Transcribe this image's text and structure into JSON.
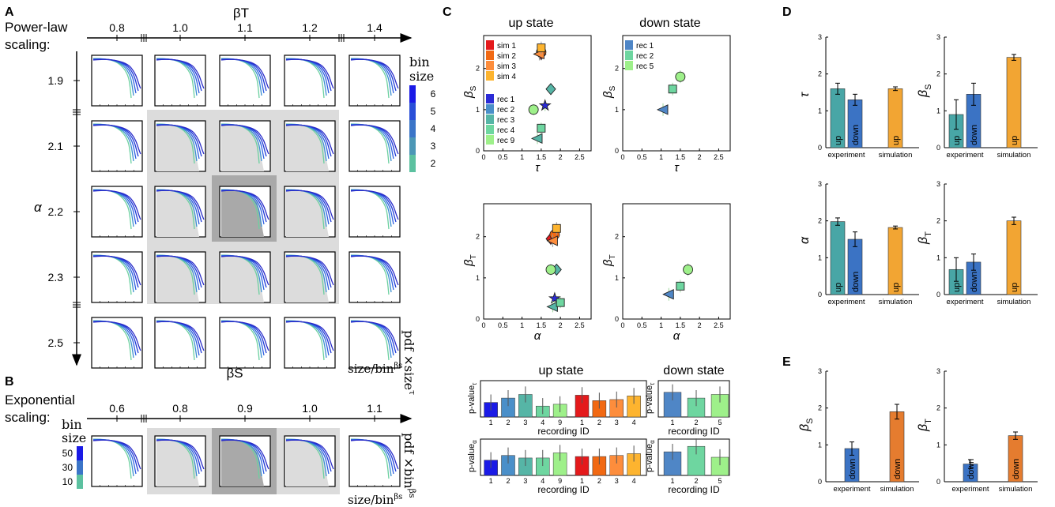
{
  "panels": {
    "A": "A",
    "B": "B",
    "C": "C",
    "D": "D",
    "E": "E"
  },
  "colors": {
    "sim": [
      "#e41a1c",
      "#f16913",
      "#fd8d3c",
      "#fdb42f"
    ],
    "rec": [
      "#2b2bd6",
      "#4a8fc9",
      "#56b5a6",
      "#6ed6a0",
      "#9ef08a"
    ],
    "teal": "#48a6a6",
    "blue": "#3b73c4",
    "orange": "#f2a533",
    "dorange": "#e57c2f",
    "grey": "#d9d9d9",
    "dgrey": "#a8a8a8"
  },
  "panelA": {
    "title_lines": [
      "Power-law",
      "scaling:"
    ],
    "top_axis_label": "βT",
    "top_ticks": [
      "0.8",
      "1.0",
      "1.1",
      "1.2",
      "1.4"
    ],
    "left_axis_label": "α",
    "left_ticks": [
      "1.9",
      "2.1",
      "2.2",
      "2.3",
      "2.5"
    ],
    "bottom_label": "βS",
    "colorbar_title": [
      "bin",
      "size"
    ],
    "colorbar_ticks": [
      "6",
      "5",
      "4",
      "3",
      "2"
    ],
    "ylabel": "pdf ×size",
    "ylabel_exp": "τ",
    "xlabel": "size/bin",
    "xlabel_exp": "βs"
  },
  "panelB": {
    "title_lines": [
      "Exponential",
      "scaling:"
    ],
    "top_ticks": [
      "0.6",
      "0.8",
      "0.9",
      "1.0",
      "1.1"
    ],
    "colorbar_title": [
      "bin",
      "size"
    ],
    "colorbar_ticks": [
      "50",
      "30",
      "10"
    ],
    "ylabel": "pdf ×bin",
    "ylabel_exp": "βs",
    "xlabel": "size/bin",
    "xlabel_exp": "βs"
  },
  "panelC": {
    "up_title": "up state",
    "down_title": "down state",
    "sim_legend": [
      "sim 1",
      "sim 2",
      "sim 3",
      "sim 4"
    ],
    "rec_legend_up": [
      "rec 1",
      "rec 2",
      "rec 3",
      "rec 4",
      "rec 9"
    ],
    "rec_legend_down": [
      "rec 1",
      "rec 2",
      "rec 5"
    ],
    "x_tau": "τ",
    "x_alpha": "α",
    "y_betaS": "β",
    "y_betaS_sub": "S",
    "y_betaT": "β",
    "y_betaT_sub": "T",
    "xticks": [
      "0",
      "0.5",
      "1",
      "1.5",
      "2",
      "2.5"
    ],
    "yticks": [
      "0",
      "1",
      "2"
    ],
    "pval_tau": "p-value",
    "pval_tau_sub": "τ",
    "pval_alpha": "p-value",
    "pval_alpha_sub": "α",
    "recording_id": "recording ID",
    "up_ids": [
      "1",
      "2",
      "3",
      "4",
      "9",
      "1",
      "2",
      "3",
      "4"
    ],
    "down_ids": [
      "1",
      "2",
      "5"
    ]
  },
  "panelDE": {
    "cat_experiment": "experiment",
    "cat_simulation": "simulation",
    "tag_up": "up",
    "tag_down": "down",
    "label_tau": "τ",
    "label_alpha": "α",
    "label_beta": "β",
    "sub_S": "S",
    "sub_T": "T"
  },
  "chart_data": [
    {
      "type": "scatter",
      "title": "up state",
      "xlabel": "τ",
      "ylabel": "βS",
      "xlim": [
        0,
        2.8
      ],
      "ylim": [
        0,
        2.8
      ],
      "points": [
        {
          "name": "sim 1",
          "x": 1.5,
          "y": 2.35
        },
        {
          "name": "sim 2",
          "x": 1.5,
          "y": 2.4
        },
        {
          "name": "sim 3",
          "x": 1.45,
          "y": 2.35
        },
        {
          "name": "sim 4",
          "x": 1.5,
          "y": 2.5
        },
        {
          "name": "rec 1",
          "x": 1.6,
          "y": 1.1
        },
        {
          "name": "rec 2",
          "x": 1.75,
          "y": 1.5
        },
        {
          "name": "rec 3",
          "x": 1.4,
          "y": 0.3
        },
        {
          "name": "rec 4",
          "x": 1.5,
          "y": 0.55
        },
        {
          "name": "rec 9",
          "x": 1.3,
          "y": 1.0
        }
      ]
    },
    {
      "type": "scatter",
      "title": "down state",
      "xlabel": "τ",
      "ylabel": "βS",
      "xlim": [
        0,
        2.8
      ],
      "ylim": [
        0,
        2.8
      ],
      "points": [
        {
          "name": "rec 1",
          "x": 1.05,
          "y": 1.0
        },
        {
          "name": "rec 2",
          "x": 1.3,
          "y": 1.5
        },
        {
          "name": "rec 5",
          "x": 1.5,
          "y": 1.8
        }
      ]
    },
    {
      "type": "scatter",
      "title": "up state",
      "xlabel": "α",
      "ylabel": "βT",
      "xlim": [
        0,
        2.8
      ],
      "ylim": [
        0,
        2.8
      ],
      "points": [
        {
          "name": "sim 1",
          "x": 1.75,
          "y": 1.95
        },
        {
          "name": "sim 2",
          "x": 1.85,
          "y": 2.05
        },
        {
          "name": "sim 3",
          "x": 1.8,
          "y": 1.9
        },
        {
          "name": "sim 4",
          "x": 1.9,
          "y": 2.2
        },
        {
          "name": "rec 1",
          "x": 1.85,
          "y": 0.5
        },
        {
          "name": "rec 2",
          "x": 1.9,
          "y": 1.2
        },
        {
          "name": "rec 3",
          "x": 1.8,
          "y": 0.3
        },
        {
          "name": "rec 4",
          "x": 2.0,
          "y": 0.4
        },
        {
          "name": "rec 9",
          "x": 1.75,
          "y": 1.2
        }
      ]
    },
    {
      "type": "scatter",
      "title": "down state",
      "xlabel": "α",
      "ylabel": "βT",
      "xlim": [
        0,
        2.8
      ],
      "ylim": [
        0,
        2.8
      ],
      "points": [
        {
          "name": "rec 1",
          "x": 1.2,
          "y": 0.6
        },
        {
          "name": "rec 2",
          "x": 1.5,
          "y": 0.8
        },
        {
          "name": "rec 5",
          "x": 1.7,
          "y": 1.2
        }
      ]
    },
    {
      "type": "bar",
      "title": "up state p-value τ",
      "xlabel": "recording ID",
      "ylabel": "p-value τ",
      "ylim": [
        0,
        1
      ],
      "categories": [
        "1",
        "2",
        "3",
        "4",
        "9",
        "1",
        "2",
        "3",
        "4"
      ],
      "values": [
        0.4,
        0.52,
        0.62,
        0.3,
        0.35,
        0.6,
        0.45,
        0.48,
        0.58
      ]
    },
    {
      "type": "bar",
      "title": "up state p-value α",
      "xlabel": "recording ID",
      "ylabel": "p-value α",
      "ylim": [
        0,
        1
      ],
      "categories": [
        "1",
        "2",
        "3",
        "4",
        "9",
        "1",
        "2",
        "3",
        "4"
      ],
      "values": [
        0.42,
        0.55,
        0.48,
        0.48,
        0.62,
        0.52,
        0.52,
        0.55,
        0.6
      ]
    },
    {
      "type": "bar",
      "title": "down state p-value τ",
      "xlabel": "recording ID",
      "ylabel": "p-value τ",
      "ylim": [
        0,
        1
      ],
      "categories": [
        "1",
        "2",
        "5"
      ],
      "values": [
        0.68,
        0.52,
        0.62
      ]
    },
    {
      "type": "bar",
      "title": "down state p-value α",
      "xlabel": "recording ID",
      "ylabel": "p-value α",
      "ylim": [
        0,
        1
      ],
      "categories": [
        "1",
        "2",
        "5"
      ],
      "values": [
        0.65,
        0.8,
        0.5
      ]
    },
    {
      "type": "bar",
      "title": "D τ",
      "ylabel": "τ",
      "ylim": [
        0,
        3
      ],
      "categories": [
        "experiment up",
        "experiment down",
        "simulation up"
      ],
      "values": [
        1.6,
        1.3,
        1.6
      ],
      "errors": [
        0.15,
        0.15,
        0.05
      ]
    },
    {
      "type": "bar",
      "title": "D βS",
      "ylabel": "βS",
      "ylim": [
        0,
        3
      ],
      "categories": [
        "experiment up",
        "experiment down",
        "simulation up"
      ],
      "values": [
        0.9,
        1.45,
        2.45
      ],
      "errors": [
        0.4,
        0.3,
        0.08
      ]
    },
    {
      "type": "bar",
      "title": "D α",
      "ylabel": "α",
      "ylim": [
        0,
        3
      ],
      "categories": [
        "experiment up",
        "experiment down",
        "simulation up"
      ],
      "values": [
        1.98,
        1.5,
        1.82
      ],
      "errors": [
        0.1,
        0.2,
        0.04
      ]
    },
    {
      "type": "bar",
      "title": "D βT",
      "ylabel": "βT",
      "ylim": [
        0,
        3
      ],
      "categories": [
        "experiment up",
        "experiment down",
        "simulation up"
      ],
      "values": [
        0.68,
        0.88,
        2.0
      ],
      "errors": [
        0.32,
        0.22,
        0.1
      ]
    },
    {
      "type": "bar",
      "title": "E βS",
      "ylabel": "βS",
      "ylim": [
        0,
        3
      ],
      "categories": [
        "experiment down",
        "simulation down"
      ],
      "values": [
        0.9,
        1.9
      ],
      "errors": [
        0.18,
        0.2
      ]
    },
    {
      "type": "bar",
      "title": "E βT",
      "ylabel": "βT",
      "ylim": [
        0,
        3
      ],
      "categories": [
        "experiment down",
        "simulation down"
      ],
      "values": [
        0.48,
        1.25
      ],
      "errors": [
        0.12,
        0.1
      ]
    }
  ]
}
